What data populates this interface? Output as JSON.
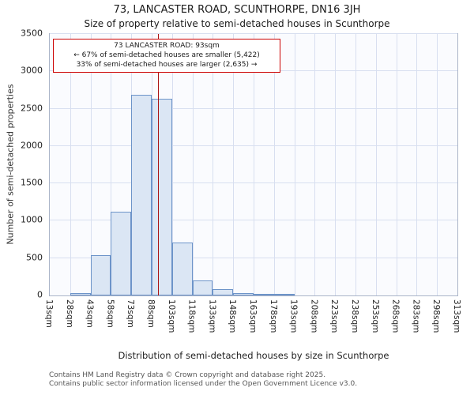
{
  "title": "73, LANCASTER ROAD, SCUNTHORPE, DN16 3JH",
  "subtitle": "Size of property relative to semi-detached houses in Scunthorpe",
  "annotation": {
    "line1": "73 LANCASTER ROAD: 93sqm",
    "line2": "← 67% of semi-detached houses are smaller (5,422)",
    "line3": "33% of semi-detached houses are larger (2,635) →"
  },
  "footer": {
    "line1": "Contains HM Land Registry data © Crown copyright and database right 2025.",
    "line2": "Contains public sector information licensed under the Open Government Licence v3.0."
  },
  "chart_data": {
    "type": "bar",
    "title": "73, LANCASTER ROAD, SCUNTHORPE, DN16 3JH — Size of property relative to semi-detached houses in Scunthorpe",
    "xlabel": "Distribution of semi-detached houses by size in Scunthorpe",
    "ylabel": "Number of semi-detached properties",
    "bin_edges": [
      13,
      28,
      43,
      58,
      73,
      88,
      103,
      118,
      133,
      148,
      163,
      178,
      193,
      208,
      223,
      238,
      253,
      268,
      283,
      298,
      313
    ],
    "bin_labels": [
      "13sqm",
      "28sqm",
      "43sqm",
      "58sqm",
      "73sqm",
      "88sqm",
      "103sqm",
      "118sqm",
      "133sqm",
      "148sqm",
      "163sqm",
      "178sqm",
      "193sqm",
      "208sqm",
      "223sqm",
      "238sqm",
      "253sqm",
      "268sqm",
      "283sqm",
      "298sqm",
      "313sqm"
    ],
    "values": [
      0,
      30,
      540,
      1120,
      2690,
      2630,
      710,
      200,
      90,
      35,
      15,
      10,
      0,
      0,
      0,
      0,
      0,
      0,
      0,
      0
    ],
    "ylim": [
      0,
      3500
    ],
    "yticks": [
      0,
      500,
      1000,
      1500,
      2000,
      2500,
      3000,
      3500
    ],
    "grid": true,
    "legend": false,
    "marker": {
      "x": 93,
      "label": "93sqm"
    },
    "colors": {
      "bar_fill": "#dbe6f4",
      "bar_border": "#6d94c9",
      "marker": "#aa1111",
      "grid": "#d8dff0",
      "annotation_border": "#cc0000"
    }
  }
}
